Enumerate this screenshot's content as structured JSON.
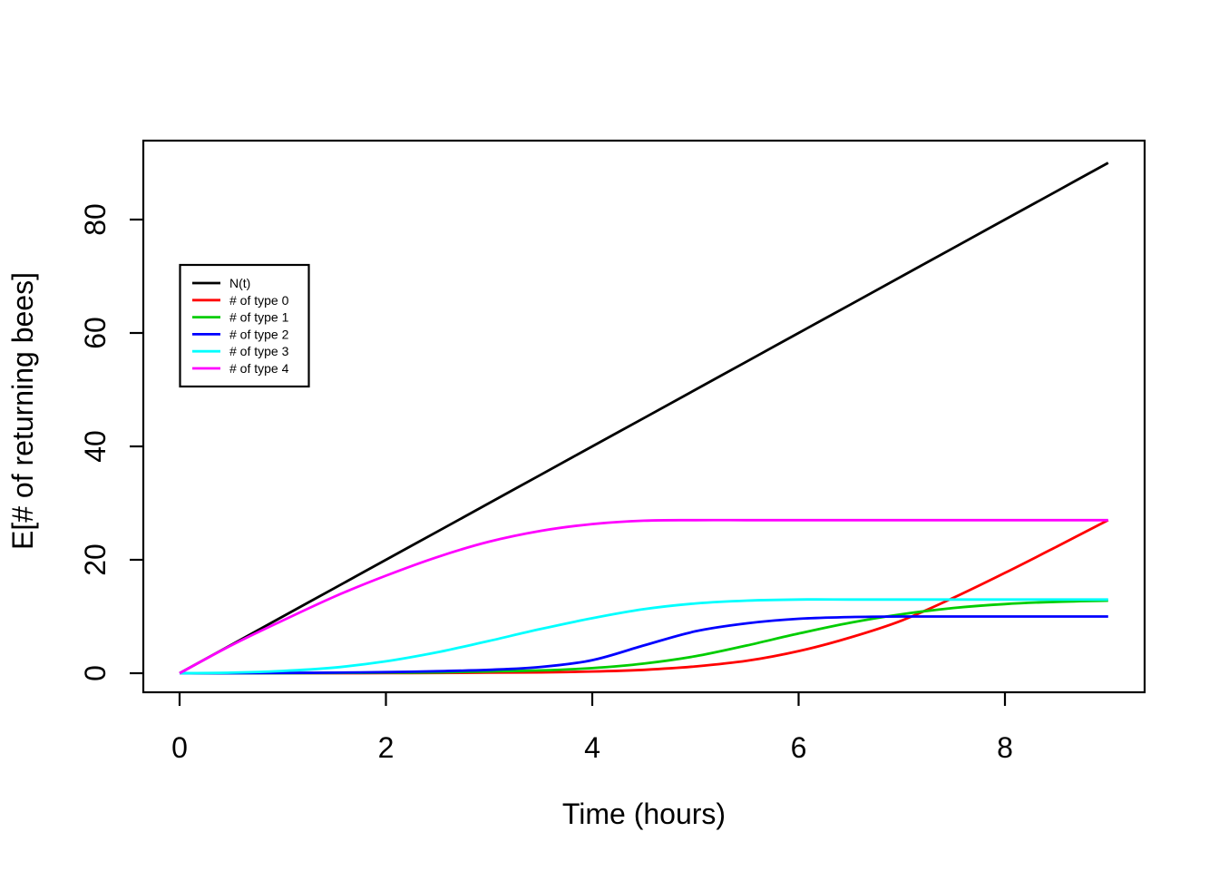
{
  "figure": {
    "background": "#ffffff",
    "frame_color": "#000000"
  },
  "chart_data": {
    "type": "line",
    "title": "",
    "xlabel": "Time (hours)",
    "ylabel": "E[# of returning bees]",
    "xlim": [
      0,
      9
    ],
    "ylim": [
      0,
      90
    ],
    "xticks": [
      0,
      2,
      4,
      6,
      8
    ],
    "yticks": [
      0,
      20,
      40,
      60,
      80
    ],
    "grid": false,
    "legend_position": "upper-left-inset",
    "x": [
      0,
      0.5,
      1,
      1.5,
      2,
      2.5,
      3,
      3.5,
      4,
      4.5,
      5,
      5.5,
      6,
      6.5,
      7,
      7.5,
      8,
      8.5,
      9
    ],
    "series": [
      {
        "id": "nt",
        "name": "N(t)",
        "color": "#000000",
        "values": [
          0,
          5,
          10,
          15,
          20,
          25,
          30,
          35,
          40,
          45,
          50,
          55,
          60,
          65,
          70,
          75,
          80,
          85,
          90
        ]
      },
      {
        "id": "type-0",
        "name": "# of type 0",
        "color": "#ff0000",
        "values": [
          0,
          0,
          0,
          0,
          0.02,
          0.05,
          0.1,
          0.15,
          0.3,
          0.6,
          1.2,
          2.2,
          3.9,
          6.3,
          9.3,
          13.3,
          17.7,
          22.3,
          27
        ]
      },
      {
        "id": "type-1",
        "name": "# of type 1",
        "color": "#00cd00",
        "values": [
          0,
          0,
          0,
          0.05,
          0.1,
          0.15,
          0.3,
          0.5,
          0.9,
          1.7,
          3,
          4.9,
          7,
          8.9,
          10.4,
          11.5,
          12.2,
          12.6,
          12.8
        ]
      },
      {
        "id": "type-2",
        "name": "# of type 2",
        "color": "#0000ff",
        "values": [
          0,
          0,
          0.05,
          0.1,
          0.2,
          0.35,
          0.6,
          1.1,
          2.3,
          4.9,
          7.4,
          8.8,
          9.6,
          9.9,
          10,
          10,
          10,
          10,
          10
        ]
      },
      {
        "id": "type-3",
        "name": "# of type 3",
        "color": "#00ffff",
        "values": [
          0,
          0.1,
          0.4,
          1,
          2.1,
          3.7,
          5.7,
          7.8,
          9.7,
          11.3,
          12.3,
          12.8,
          13,
          13,
          13,
          13,
          13,
          13,
          13
        ]
      },
      {
        "id": "type-4",
        "name": "# of type 4",
        "color": "#ff00ff",
        "values": [
          0,
          4.9,
          9.3,
          13.5,
          17.2,
          20.5,
          23.2,
          25.1,
          26.3,
          26.9,
          27,
          27,
          27,
          27,
          27,
          27,
          27,
          27,
          27
        ]
      }
    ]
  }
}
